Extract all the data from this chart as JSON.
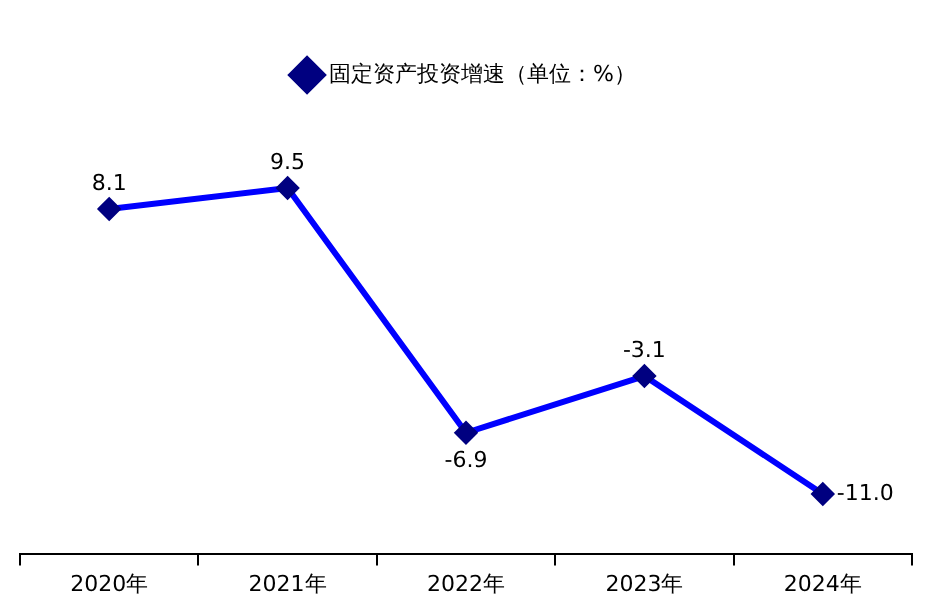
{
  "chart_data": {
    "type": "line",
    "categories": [
      "2020年",
      "2021年",
      "2022年",
      "2023年",
      "2024年"
    ],
    "series": [
      {
        "name": "固定资产投资增速（单位：%）",
        "color": "#0000ff",
        "values": [
          8.1,
          9.5,
          -6.9,
          -3.1,
          -11.0
        ],
        "value_labels": [
          "8.1",
          "9.5",
          "-6.9",
          "-3.1",
          "-11.0"
        ]
      }
    ],
    "tick_labels": "x",
    "grid": false,
    "legend": "top",
    "marker": "diamond",
    "line_style": "solid"
  }
}
